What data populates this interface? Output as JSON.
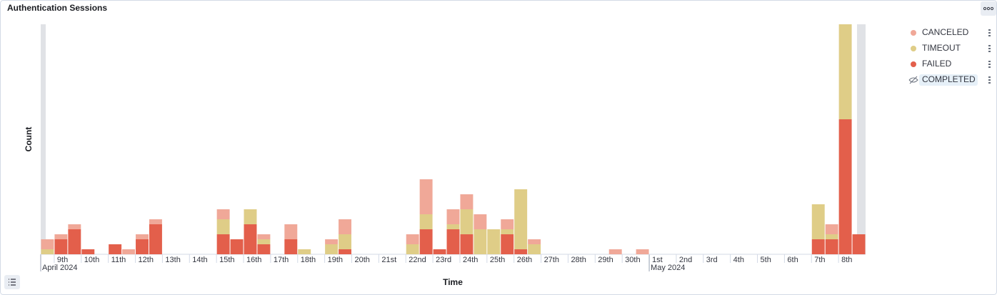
{
  "chart_data": {
    "type": "bar",
    "stacked": true,
    "title": "Authentication Sessions",
    "y_label": "Count",
    "x_label": "Time",
    "bar_width": 0.5,
    "x": [
      8.5,
      9,
      9.5,
      10,
      10.5,
      11,
      11.5,
      12,
      12.5,
      13,
      13.5,
      14,
      14.5,
      15,
      15.5,
      16,
      16.5,
      17,
      17.5,
      18,
      18.5,
      19,
      19.5,
      20,
      20.5,
      21,
      21.5,
      22,
      22.5,
      23,
      23.5,
      24,
      24.5,
      25,
      25.5,
      26,
      26.5,
      27,
      27.5,
      28,
      28.5,
      29,
      29.5,
      30,
      30.5,
      31,
      31.5,
      32,
      32.5,
      33,
      33.5,
      34,
      34.5,
      35,
      35.5,
      36,
      36.5,
      37,
      37.5,
      38,
      38.5
    ],
    "series": [
      {
        "name": "FAILED",
        "color": "#e35f4b",
        "values": [
          0,
          3,
          5,
          1,
          0,
          2,
          0,
          3,
          6,
          0,
          0,
          0,
          0,
          4,
          3,
          6,
          2,
          0,
          3,
          0,
          0,
          0,
          1,
          0,
          0,
          0,
          0,
          0,
          5,
          1,
          5,
          4,
          0,
          0,
          4,
          1,
          0,
          0,
          0,
          0,
          0,
          0,
          0,
          0,
          0,
          0,
          0,
          0,
          0,
          0,
          0,
          0,
          0,
          0,
          0,
          0,
          0,
          3,
          3,
          27,
          4
        ]
      },
      {
        "name": "TIMEOUT",
        "color": "#dfcd87",
        "values": [
          1,
          0,
          0,
          0,
          0,
          0,
          0,
          0,
          0,
          0,
          0,
          0,
          0,
          3,
          0,
          3,
          1,
          0,
          0,
          1,
          0,
          2,
          3,
          0,
          0,
          0,
          0,
          2,
          3,
          0,
          1,
          5,
          5,
          5,
          1,
          12,
          2,
          0,
          0,
          0,
          0,
          0,
          0,
          0,
          0,
          0,
          0,
          0,
          0,
          0,
          0,
          0,
          0,
          0,
          0,
          0,
          0,
          7,
          1,
          19,
          0
        ]
      },
      {
        "name": "CANCELED",
        "color": "#f0a898",
        "values": [
          2,
          1,
          1,
          0,
          0,
          0,
          1,
          1,
          1,
          0,
          0,
          0,
          0,
          2,
          0,
          0,
          1,
          0,
          3,
          0,
          0,
          1,
          3,
          0,
          0,
          0,
          0,
          2,
          7,
          0,
          3,
          3,
          3,
          0,
          2,
          0,
          1,
          0,
          0,
          0,
          0,
          0,
          1,
          0,
          1,
          0,
          0,
          0,
          0,
          0,
          0,
          0,
          0,
          0,
          0,
          0,
          0,
          0,
          2,
          0,
          0
        ]
      }
    ],
    "legend": [
      {
        "name": "CANCELED",
        "series": 2
      },
      {
        "name": "TIMEOUT",
        "series": 1
      },
      {
        "name": "FAILED",
        "series": 0
      },
      {
        "name": "COMPLETED",
        "hidden": true
      }
    ],
    "legend_position": "right",
    "xlim": [
      8.5,
      39
    ],
    "ylim": [
      0,
      46
    ],
    "xticks": [
      {
        "value": 9,
        "label": "9th"
      },
      {
        "value": 10,
        "label": "10th"
      },
      {
        "value": 11,
        "label": "11th"
      },
      {
        "value": 12,
        "label": "12th"
      },
      {
        "value": 13,
        "label": "13th"
      },
      {
        "value": 14,
        "label": "14th"
      },
      {
        "value": 15,
        "label": "15th"
      },
      {
        "value": 16,
        "label": "16th"
      },
      {
        "value": 17,
        "label": "17th"
      },
      {
        "value": 18,
        "label": "18th"
      },
      {
        "value": 19,
        "label": "19th"
      },
      {
        "value": 20,
        "label": "20th"
      },
      {
        "value": 21,
        "label": "21st"
      },
      {
        "value": 22,
        "label": "22nd"
      },
      {
        "value": 23,
        "label": "23rd"
      },
      {
        "value": 24,
        "label": "24th"
      },
      {
        "value": 25,
        "label": "25th"
      },
      {
        "value": 26,
        "label": "26th"
      },
      {
        "value": 27,
        "label": "27th"
      },
      {
        "value": 28,
        "label": "28th"
      },
      {
        "value": 29,
        "label": "29th"
      },
      {
        "value": 30,
        "label": "30th"
      },
      {
        "value": 31,
        "label": "1st"
      },
      {
        "value": 32,
        "label": "2nd"
      },
      {
        "value": 33,
        "label": "3rd"
      },
      {
        "value": 34,
        "label": "4th"
      },
      {
        "value": 35,
        "label": "5th"
      },
      {
        "value": 36,
        "label": "6th"
      },
      {
        "value": 37,
        "label": "7th"
      },
      {
        "value": 38,
        "label": "8th"
      }
    ],
    "xticks_secondary": [
      {
        "value": 8.5,
        "label": "April 2024"
      },
      {
        "value": 31,
        "label": "May 2024"
      }
    ]
  }
}
